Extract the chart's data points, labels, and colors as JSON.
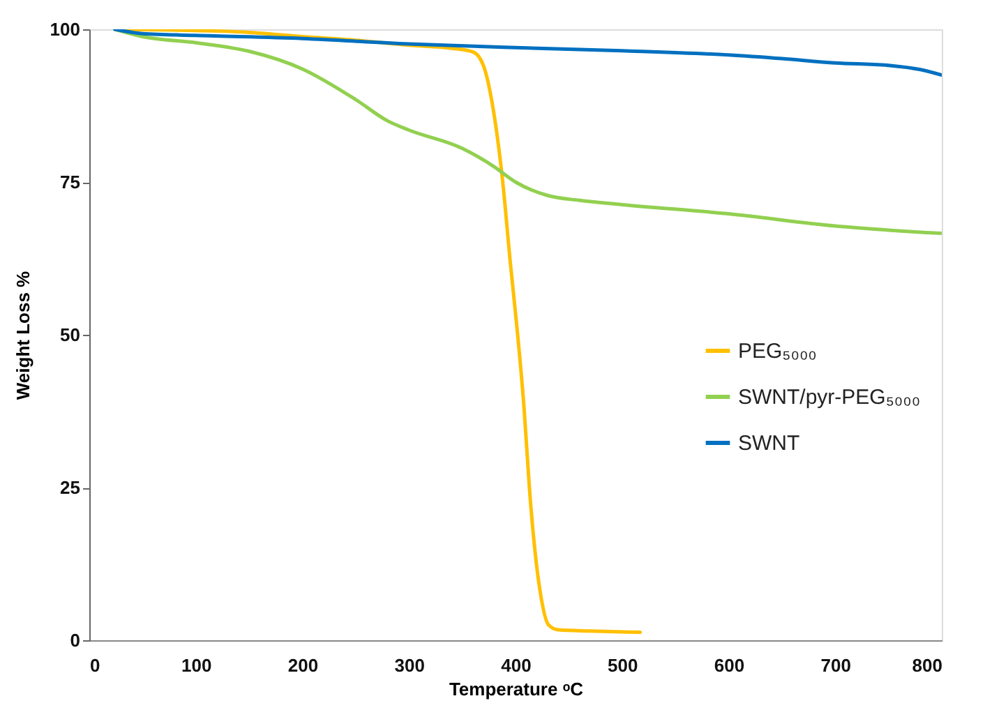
{
  "chart_data": {
    "type": "line",
    "xlabel": "Temperature ᵒC",
    "ylabel": "Weight Loss %",
    "xlim": [
      0,
      800
    ],
    "xticks": [
      0,
      100,
      200,
      300,
      400,
      500,
      600,
      700,
      800
    ],
    "ylim": [
      0,
      100
    ],
    "yticks": [
      0,
      25,
      50,
      75,
      100
    ],
    "grid": false,
    "legend": "right",
    "marker": "none",
    "line_style": "solid",
    "series": [
      {
        "name": "PEG₅₀₀₀",
        "color": "#ffc000",
        "x": [
          24,
          100,
          150,
          200,
          250,
          300,
          340,
          360,
          370,
          378,
          388,
          395,
          402,
          408,
          413,
          418,
          424,
          431,
          440,
          470,
          517
        ],
        "values": [
          100,
          99.8,
          99.5,
          98.8,
          98.2,
          97.4,
          96.9,
          96.3,
          94,
          88,
          75,
          62,
          50,
          38,
          25,
          15,
          7,
          2.5,
          1.7,
          1.5,
          1.3
        ]
      },
      {
        "name": "SWNT/pyr-PEG₅₀₀₀",
        "color": "#92d050",
        "x": [
          24,
          50,
          100,
          150,
          200,
          250,
          280,
          300,
          350,
          380,
          400,
          430,
          460,
          500,
          600,
          700,
          800
        ],
        "values": [
          100,
          98.8,
          97.8,
          96.4,
          93.5,
          88.5,
          85,
          83.5,
          80.5,
          77.5,
          75,
          72.8,
          72,
          71.3,
          69.8,
          67.8,
          66.6
        ]
      },
      {
        "name": "SWNT",
        "color": "#0070c0",
        "x": [
          24,
          50,
          100,
          200,
          300,
          400,
          500,
          600,
          650,
          700,
          750,
          780,
          800
        ],
        "values": [
          100,
          99.3,
          99,
          98.5,
          97.6,
          97,
          96.5,
          95.8,
          95.2,
          94.5,
          94.1,
          93.4,
          92.5
        ]
      }
    ]
  }
}
